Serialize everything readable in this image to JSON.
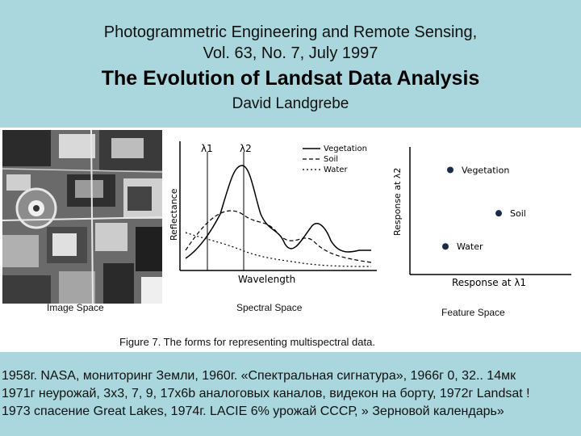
{
  "header": {
    "journal_line1": "Photogrammetric Engineering and Remote Sensing,",
    "journal_line2": "Vol. 63, No. 7, July 1997",
    "title": "The Evolution of Landsat Data Analysis",
    "author": "David Landgrebe"
  },
  "figure": {
    "caption": "Figure 7. The forms for representing multispectral data.",
    "image_space_label": "Image Space",
    "spectral_space_label": "Spectral Space",
    "feature_space_label": "Feature Space",
    "spectral": {
      "lambda1": "λ1",
      "lambda2": "λ2",
      "ylabel": "Reflectance",
      "xlabel": "Wavelength",
      "legend": [
        "Vegetation",
        "Soil",
        "Water"
      ]
    },
    "feature": {
      "ylabel": "Response at λ2",
      "xlabel": "Response at λ1",
      "points": [
        {
          "label": "Vegetation",
          "x": 0.25,
          "y": 0.82
        },
        {
          "label": "Soil",
          "x": 0.55,
          "y": 0.48
        },
        {
          "label": "Water",
          "x": 0.22,
          "y": 0.22
        }
      ]
    }
  },
  "bottom_text": [
    "1958г. NASA, мониторинг Земли, 1960г. «Спектральная сигнатура», 1966г 0, 32.. 14мк",
    "1971г неурожай, 3x3, 7, 9, 17x6b аналоговых каналов, видекон на борту, 1972г Landsat !",
    "1973 спасение Great Lakes, 1974г. LACIE 6% урожай СССР, » Зерновой календарь»"
  ]
}
